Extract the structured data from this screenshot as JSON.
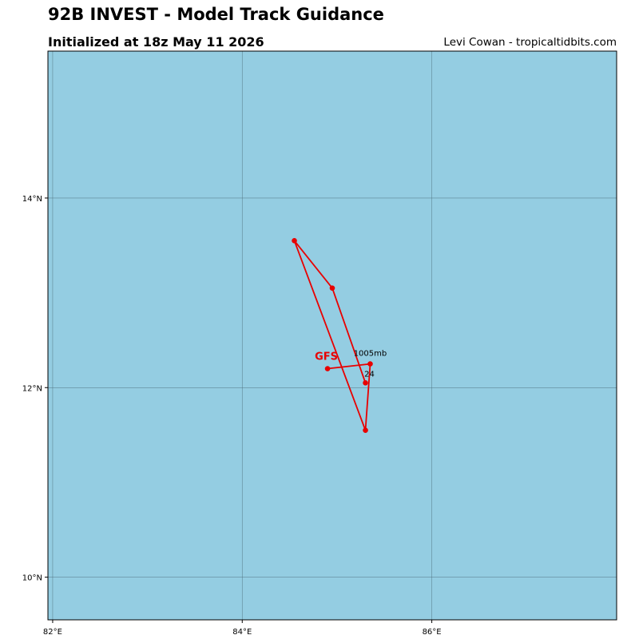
{
  "title": "92B INVEST - Model Track Guidance",
  "subtitle": "Initialized at 18z May 11 2026",
  "credit": "Levi Cowan - tropicaltidbits.com",
  "map": {
    "ocean_color": "#94cde2",
    "grid_color": "#4a6a76",
    "lon_range": [
      81.95,
      87.95
    ],
    "lat_range": [
      9.55,
      15.55
    ],
    "lon_ticks": [
      {
        "value": 82,
        "label": "82°E"
      },
      {
        "value": 84,
        "label": "84°E"
      },
      {
        "value": 86,
        "label": "86°E"
      }
    ],
    "lat_ticks": [
      {
        "value": 10,
        "label": "10°N"
      },
      {
        "value": 12,
        "label": "12°N"
      },
      {
        "value": 14,
        "label": "14°N"
      }
    ]
  },
  "tracks": [
    {
      "model": "GFS",
      "color": "#e80000",
      "points": [
        {
          "lon": 84.9,
          "lat": 12.2
        },
        {
          "lon": 85.35,
          "lat": 12.25
        },
        {
          "lon": 85.3,
          "lat": 11.55
        },
        {
          "lon": 84.55,
          "lat": 13.55
        },
        {
          "lon": 84.95,
          "lat": 13.05
        },
        {
          "lon": 85.3,
          "lat": 12.05
        }
      ],
      "pressure_label": "1005mb",
      "hour_label": "24"
    }
  ]
}
